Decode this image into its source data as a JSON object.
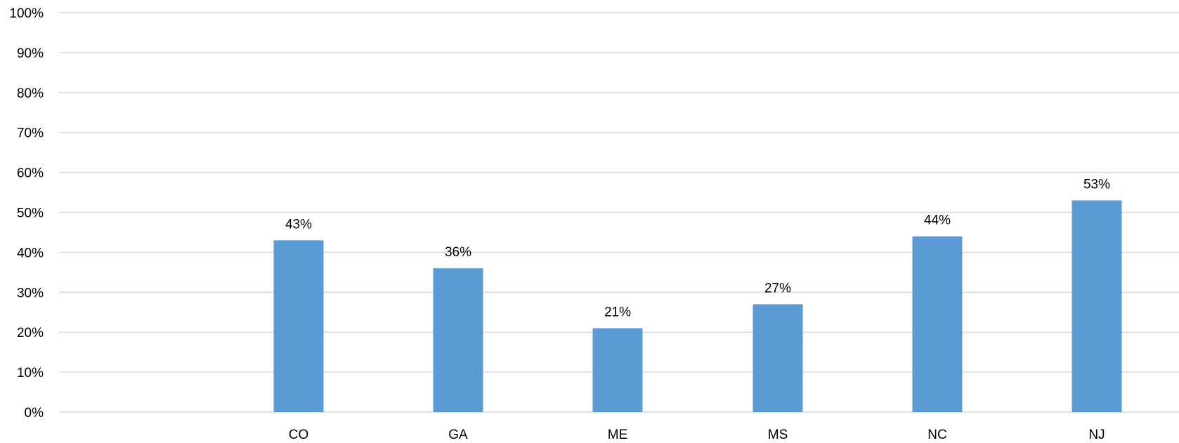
{
  "chart_data": {
    "type": "bar",
    "title": "",
    "xlabel": "",
    "ylabel": "",
    "categories": [
      "",
      "CO",
      "GA",
      "ME",
      "MS",
      "NC",
      "NJ"
    ],
    "values": [
      null,
      43,
      36,
      21,
      27,
      44,
      53
    ],
    "data_labels": [
      "",
      "43%",
      "36%",
      "21%",
      "27%",
      "44%",
      "53%"
    ],
    "ylim": [
      0,
      100
    ],
    "y_ticks": [
      0,
      10,
      20,
      30,
      40,
      50,
      60,
      70,
      80,
      90,
      100
    ],
    "y_tick_labels": [
      "0%",
      "10%",
      "20%",
      "30%",
      "40%",
      "50%",
      "60%",
      "70%",
      "80%",
      "90%",
      "100%"
    ],
    "grid": true,
    "legend": "none",
    "bar_color": "#5b9bd5"
  }
}
